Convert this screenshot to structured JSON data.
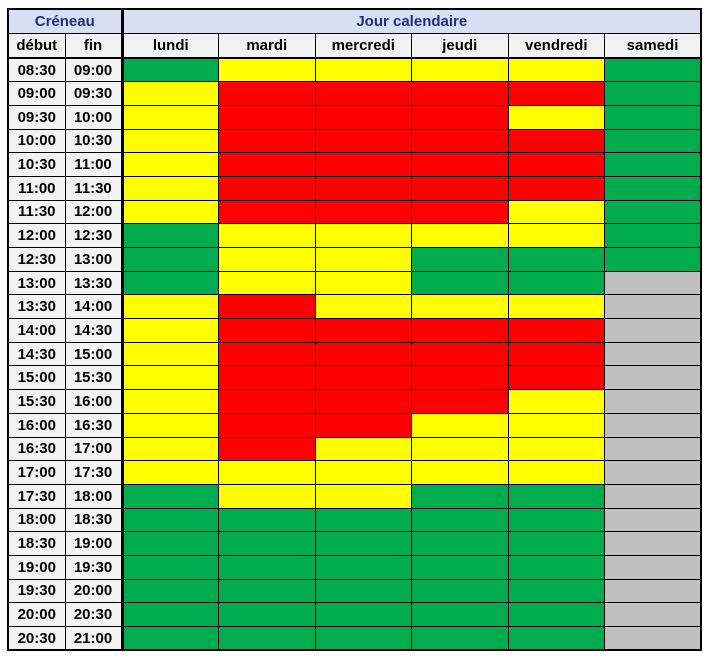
{
  "table": {
    "corner_header": "Créneau",
    "days_header": "Jour calendaire",
    "time_columns": [
      "début",
      "fin"
    ]
  },
  "colors": {
    "header_bg": "#D9DFF2",
    "header_text": "#1F2F87",
    "subheader_bg": "#F2F2F2",
    "border": "#000000"
  },
  "chart_data": {
    "type": "heatmap",
    "title": "Créneau / Jour calendaire",
    "day_columns": [
      "lundi",
      "mardi",
      "mercredi",
      "jeudi",
      "vendredi",
      "samedi"
    ],
    "color_map": {
      "green": "#00AC4E",
      "yellow": "#FFFF00",
      "red": "#FF0000",
      "gray": "#BFBFBF"
    },
    "rows": [
      {
        "start": "08:30",
        "end": "09:00",
        "cells": [
          "green",
          "yellow",
          "yellow",
          "yellow",
          "yellow",
          "green"
        ]
      },
      {
        "start": "09:00",
        "end": "09:30",
        "cells": [
          "yellow",
          "red",
          "red",
          "red",
          "red",
          "green"
        ]
      },
      {
        "start": "09:30",
        "end": "10:00",
        "cells": [
          "yellow",
          "red",
          "red",
          "red",
          "yellow",
          "green"
        ]
      },
      {
        "start": "10:00",
        "end": "10:30",
        "cells": [
          "yellow",
          "red",
          "red",
          "red",
          "red",
          "green"
        ]
      },
      {
        "start": "10:30",
        "end": "11:00",
        "cells": [
          "yellow",
          "red",
          "red",
          "red",
          "red",
          "green"
        ]
      },
      {
        "start": "11:00",
        "end": "11:30",
        "cells": [
          "yellow",
          "red",
          "red",
          "red",
          "red",
          "green"
        ]
      },
      {
        "start": "11:30",
        "end": "12:00",
        "cells": [
          "yellow",
          "red",
          "red",
          "red",
          "yellow",
          "green"
        ]
      },
      {
        "start": "12:00",
        "end": "12:30",
        "cells": [
          "green",
          "yellow",
          "yellow",
          "yellow",
          "yellow",
          "green"
        ]
      },
      {
        "start": "12:30",
        "end": "13:00",
        "cells": [
          "green",
          "yellow",
          "yellow",
          "green",
          "green",
          "green"
        ]
      },
      {
        "start": "13:00",
        "end": "13:30",
        "cells": [
          "green",
          "yellow",
          "yellow",
          "green",
          "green",
          "gray"
        ]
      },
      {
        "start": "13:30",
        "end": "14:00",
        "cells": [
          "yellow",
          "red",
          "yellow",
          "yellow",
          "yellow",
          "gray"
        ]
      },
      {
        "start": "14:00",
        "end": "14:30",
        "cells": [
          "yellow",
          "red",
          "red",
          "red",
          "red",
          "gray"
        ]
      },
      {
        "start": "14:30",
        "end": "15:00",
        "cells": [
          "yellow",
          "red",
          "red",
          "red",
          "red",
          "gray"
        ]
      },
      {
        "start": "15:00",
        "end": "15:30",
        "cells": [
          "yellow",
          "red",
          "red",
          "red",
          "red",
          "gray"
        ]
      },
      {
        "start": "15:30",
        "end": "16:00",
        "cells": [
          "yellow",
          "red",
          "red",
          "red",
          "yellow",
          "gray"
        ]
      },
      {
        "start": "16:00",
        "end": "16:30",
        "cells": [
          "yellow",
          "red",
          "red",
          "yellow",
          "yellow",
          "gray"
        ]
      },
      {
        "start": "16:30",
        "end": "17:00",
        "cells": [
          "yellow",
          "red",
          "yellow",
          "yellow",
          "yellow",
          "gray"
        ]
      },
      {
        "start": "17:00",
        "end": "17:30",
        "cells": [
          "yellow",
          "yellow",
          "yellow",
          "yellow",
          "yellow",
          "gray"
        ]
      },
      {
        "start": "17:30",
        "end": "18:00",
        "cells": [
          "green",
          "yellow",
          "yellow",
          "green",
          "green",
          "gray"
        ]
      },
      {
        "start": "18:00",
        "end": "18:30",
        "cells": [
          "green",
          "green",
          "green",
          "green",
          "green",
          "gray"
        ]
      },
      {
        "start": "18:30",
        "end": "19:00",
        "cells": [
          "green",
          "green",
          "green",
          "green",
          "green",
          "gray"
        ]
      },
      {
        "start": "19:00",
        "end": "19:30",
        "cells": [
          "green",
          "green",
          "green",
          "green",
          "green",
          "gray"
        ]
      },
      {
        "start": "19:30",
        "end": "20:00",
        "cells": [
          "green",
          "green",
          "green",
          "green",
          "green",
          "gray"
        ]
      },
      {
        "start": "20:00",
        "end": "20:30",
        "cells": [
          "green",
          "green",
          "green",
          "green",
          "green",
          "gray"
        ]
      },
      {
        "start": "20:30",
        "end": "21:00",
        "cells": [
          "green",
          "green",
          "green",
          "green",
          "green",
          "gray"
        ]
      }
    ]
  }
}
